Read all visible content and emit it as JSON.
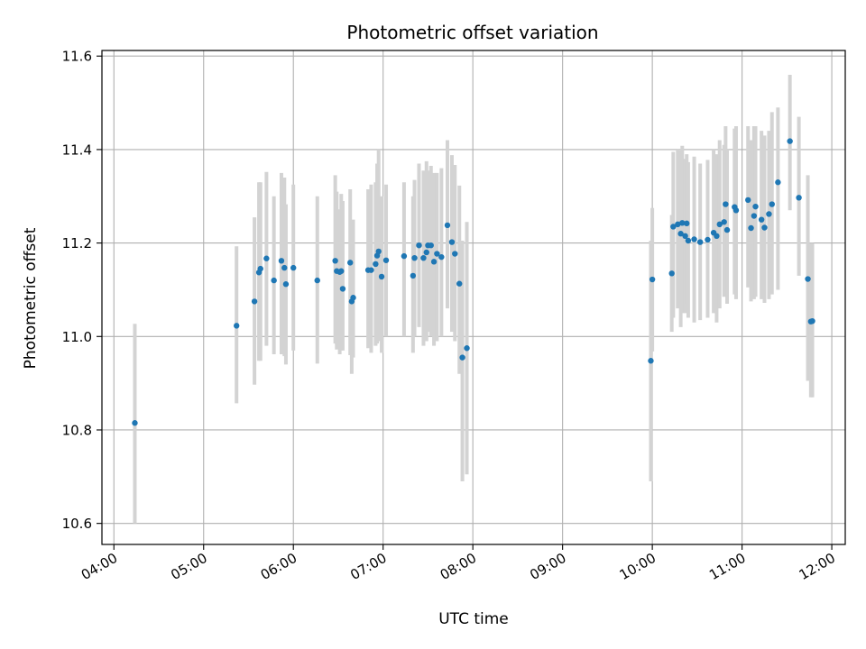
{
  "chart_data": {
    "type": "scatter",
    "title": "Photometric offset variation",
    "xlabel": "UTC time",
    "ylabel": "Photometric offset",
    "xlim": [
      "03:52",
      "12:09"
    ],
    "ylim": [
      10.555,
      11.612
    ],
    "grid": true,
    "x_ticks": [
      "04:00",
      "05:00",
      "06:00",
      "07:00",
      "08:00",
      "09:00",
      "10:00",
      "11:00",
      "12:00"
    ],
    "y_ticks": [
      "10.6",
      "10.8",
      "11.0",
      "11.2",
      "11.4",
      "11.6"
    ],
    "point_color": "#1f77b4",
    "errorbar_color": "#d3d3d3",
    "series": [
      {
        "x": [
          "04:14",
          "05:22",
          "05:34",
          "05:37",
          "05:38",
          "05:42",
          "05:47",
          "05:52",
          "05:54",
          "05:55",
          "06:00",
          "06:16",
          "06:28",
          "06:29",
          "06:31",
          "06:32",
          "06:33",
          "06:38",
          "06:39",
          "06:40",
          "06:50",
          "06:52",
          "06:55",
          "06:56",
          "06:57",
          "06:59",
          "07:02",
          "07:14",
          "07:20",
          "07:21",
          "07:24",
          "07:27",
          "07:29",
          "07:30",
          "07:32",
          "07:34",
          "07:36",
          "07:39",
          "07:43",
          "07:46",
          "07:48",
          "07:51",
          "07:53",
          "07:56",
          "09:59",
          "10:00",
          "10:13",
          "10:14",
          "10:17",
          "10:19",
          "10:20",
          "10:22",
          "10:23",
          "10:24",
          "10:28",
          "10:32",
          "10:37",
          "10:41",
          "10:43",
          "10:45",
          "10:48",
          "10:49",
          "10:50",
          "10:55",
          "10:56",
          "11:04",
          "11:06",
          "11:08",
          "11:09",
          "11:13",
          "11:15",
          "11:18",
          "11:20",
          "11:24",
          "11:32",
          "11:38",
          "11:44",
          "11:46",
          "11:47"
        ],
        "y": [
          10.815,
          11.023,
          11.075,
          11.137,
          11.145,
          11.167,
          11.12,
          11.162,
          11.147,
          11.112,
          11.147,
          11.12,
          11.162,
          11.14,
          11.138,
          11.14,
          11.102,
          11.158,
          11.075,
          11.083,
          11.142,
          11.142,
          11.155,
          11.173,
          11.182,
          11.128,
          11.163,
          11.172,
          11.13,
          11.168,
          11.195,
          11.168,
          11.18,
          11.195,
          11.195,
          11.16,
          11.177,
          11.17,
          11.238,
          11.202,
          11.177,
          11.113,
          10.955,
          10.975,
          10.948,
          11.122,
          11.135,
          11.235,
          11.24,
          11.22,
          11.243,
          11.215,
          11.242,
          11.205,
          11.208,
          11.202,
          11.207,
          11.222,
          11.215,
          11.24,
          11.245,
          11.283,
          11.228,
          11.277,
          11.27,
          11.292,
          11.232,
          11.258,
          11.278,
          11.25,
          11.233,
          11.262,
          11.283,
          11.33,
          11.418,
          11.297,
          11.123,
          11.032,
          11.033
        ],
        "err_low": [
          10.6,
          10.857,
          10.897,
          10.948,
          10.948,
          10.98,
          10.962,
          10.962,
          10.958,
          10.94,
          10.97,
          10.942,
          10.985,
          10.972,
          10.962,
          10.97,
          10.97,
          10.96,
          10.92,
          10.955,
          10.975,
          10.965,
          10.98,
          10.985,
          10.99,
          10.965,
          11.0,
          11.0,
          10.965,
          11.0,
          11.02,
          10.98,
          10.99,
          11.01,
          11.0,
          10.98,
          10.99,
          11.0,
          11.06,
          11.01,
          10.99,
          10.92,
          10.69,
          10.705,
          10.69,
          10.968,
          11.01,
          11.04,
          11.06,
          11.02,
          11.05,
          11.05,
          11.07,
          11.04,
          11.03,
          11.035,
          11.04,
          11.05,
          11.03,
          11.06,
          11.085,
          11.1,
          11.07,
          11.09,
          11.08,
          11.105,
          11.075,
          11.08,
          11.085,
          11.08,
          11.072,
          11.08,
          11.09,
          11.1,
          11.27,
          11.13,
          10.905,
          10.87,
          10.87
        ],
        "err_high": [
          11.027,
          11.193,
          11.255,
          11.33,
          11.33,
          11.352,
          11.3,
          11.35,
          11.34,
          11.283,
          11.325,
          11.3,
          11.345,
          11.31,
          11.272,
          11.305,
          11.29,
          11.315,
          11.245,
          11.25,
          11.315,
          11.325,
          11.33,
          11.37,
          11.4,
          11.3,
          11.325,
          11.33,
          11.3,
          11.335,
          11.37,
          11.355,
          11.375,
          11.355,
          11.365,
          11.35,
          11.35,
          11.36,
          11.42,
          11.388,
          11.367,
          11.323,
          11.205,
          11.245,
          11.205,
          11.275,
          11.26,
          11.395,
          11.4,
          11.398,
          11.408,
          11.38,
          11.39,
          11.373,
          11.385,
          11.37,
          11.378,
          11.4,
          11.39,
          11.42,
          11.41,
          11.45,
          11.4,
          11.445,
          11.45,
          11.45,
          11.42,
          11.45,
          11.45,
          11.44,
          11.43,
          11.44,
          11.48,
          11.49,
          11.56,
          11.47,
          11.345,
          11.2,
          11.2
        ]
      }
    ]
  }
}
